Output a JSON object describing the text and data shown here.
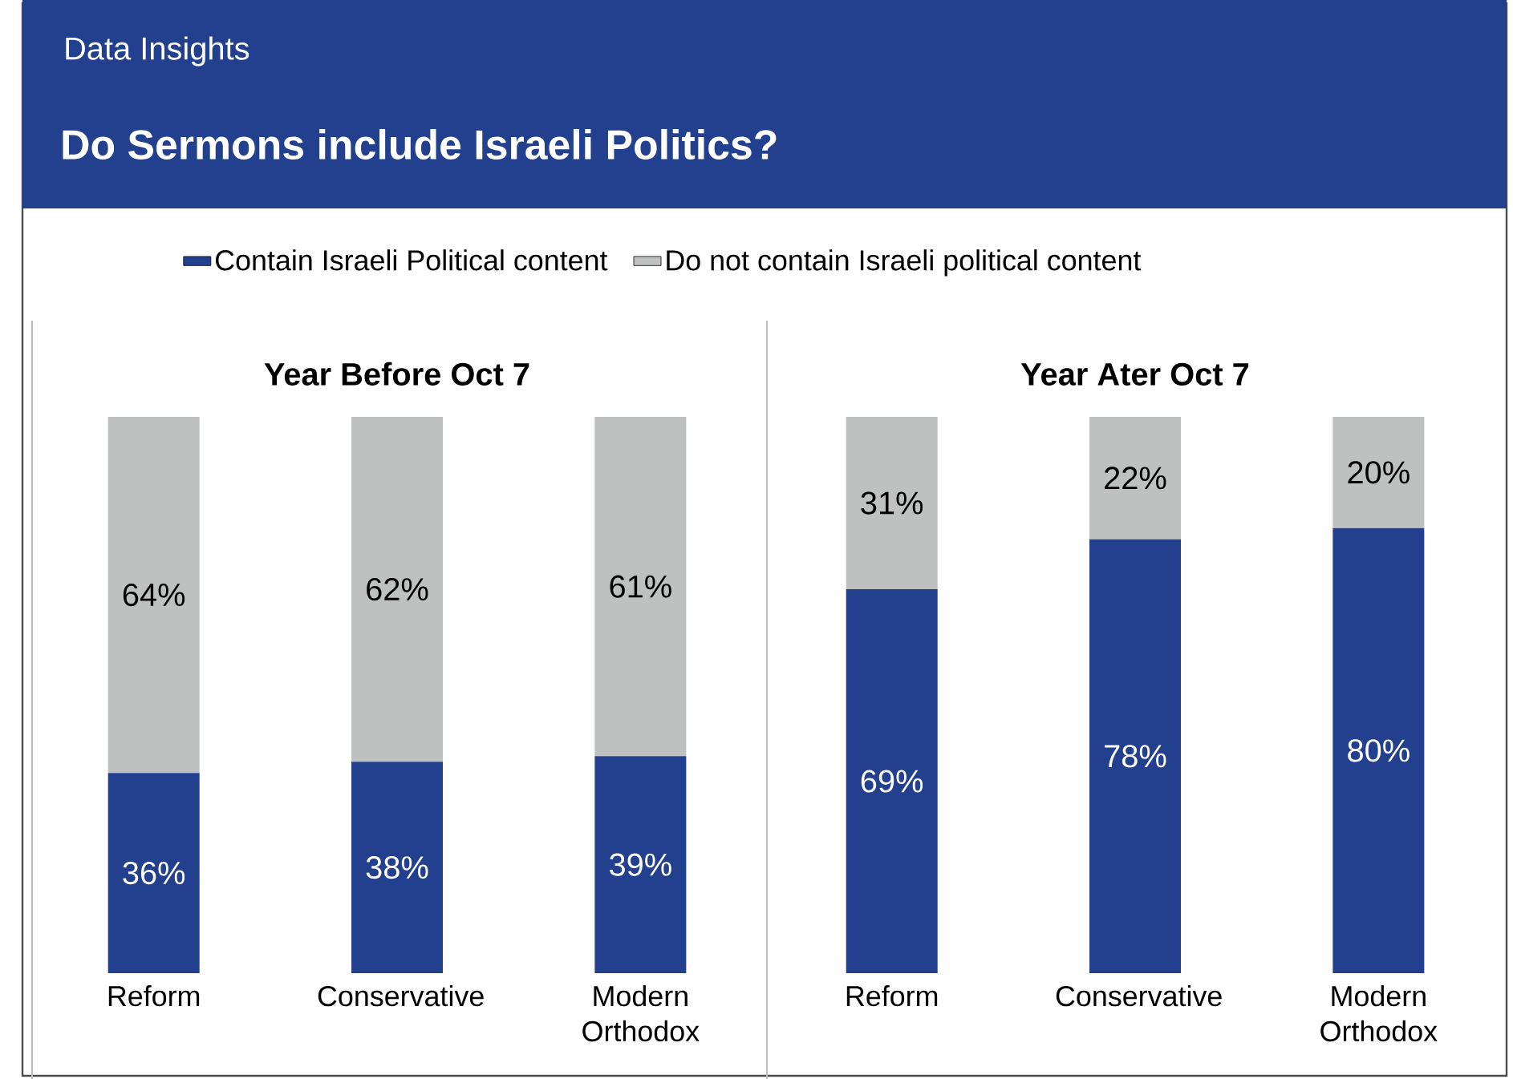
{
  "chart_data": [
    {
      "type": "other",
      "title": "Do Sermons include Israeli Politics?",
      "annotations": [
        "Data Insights"
      ]
    },
    {
      "type": "bar",
      "stacked": true,
      "title": "Year Before Oct 7",
      "categories": [
        "Reform",
        "Conservative",
        "Modern Orthodox"
      ],
      "legend": "top",
      "series": [
        {
          "name": "Contain Israeli Political content",
          "color": "#23408e",
          "values": [
            36,
            38,
            39
          ],
          "value_labels": [
            "36%",
            "38%",
            "39%"
          ]
        },
        {
          "name": "Do not contain Israeli  political content",
          "color": "#bfc0c0",
          "values": [
            64,
            62,
            61
          ],
          "value_labels": [
            "64%",
            "62%",
            "61%"
          ]
        }
      ]
    },
    {
      "type": "bar",
      "stacked": true,
      "title": "Year Ater Oct 7",
      "categories": [
        "Reform",
        "Conservative",
        "Modern Orthodox"
      ],
      "series": [
        {
          "color": "#23408e",
          "values": [
            69,
            78,
            80
          ],
          "value_labels": [
            "69%",
            "78%",
            "80%"
          ]
        },
        {
          "color": "#bfc0c0",
          "values": [
            31,
            22,
            20
          ],
          "value_labels": [
            "31%",
            "22%",
            "20%"
          ]
        }
      ]
    }
  ]
}
